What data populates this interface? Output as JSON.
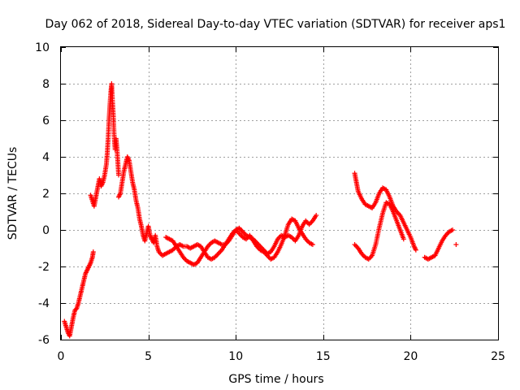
{
  "chart_data": {
    "type": "scatter",
    "title": "Day 062 of 2018, Sidereal Day-to-day VTEC variation (SDTVAR) for receiver aps1",
    "xlabel": "GPS time / hours",
    "ylabel": "SDTVAR / TECUs",
    "xlim": [
      0,
      25
    ],
    "ylim": [
      -6,
      10
    ],
    "xticks": [
      0,
      5,
      10,
      15,
      20,
      25
    ],
    "yticks": [
      -6,
      -4,
      -2,
      0,
      2,
      4,
      6,
      8,
      10
    ],
    "grid": true,
    "marker": "+",
    "series": [
      {
        "name": "aps1",
        "color": "#ff0000",
        "segments": [
          [
            [
              0.2,
              -5.0
            ],
            [
              0.3,
              -5.3
            ],
            [
              0.4,
              -5.6
            ],
            [
              0.5,
              -5.8
            ],
            [
              0.6,
              -5.3
            ],
            [
              0.7,
              -4.8
            ],
            [
              0.8,
              -4.4
            ],
            [
              0.9,
              -4.3
            ],
            [
              1.0,
              -4.0
            ],
            [
              1.1,
              -3.6
            ],
            [
              1.2,
              -3.2
            ],
            [
              1.3,
              -2.8
            ],
            [
              1.4,
              -2.4
            ],
            [
              1.5,
              -2.2
            ],
            [
              1.6,
              -2.0
            ],
            [
              1.7,
              -1.8
            ],
            [
              1.8,
              -1.5
            ],
            [
              1.85,
              -1.2
            ]
          ],
          [
            [
              1.7,
              1.9
            ],
            [
              1.8,
              1.6
            ],
            [
              1.9,
              1.3
            ],
            [
              2.0,
              1.8
            ],
            [
              2.1,
              2.3
            ],
            [
              2.2,
              2.8
            ],
            [
              2.3,
              2.4
            ],
            [
              2.4,
              2.6
            ],
            [
              2.5,
              3.0
            ],
            [
              2.6,
              3.6
            ],
            [
              2.65,
              4.2
            ],
            [
              2.7,
              5.0
            ],
            [
              2.75,
              6.0
            ],
            [
              2.8,
              6.8
            ],
            [
              2.85,
              7.5
            ],
            [
              2.9,
              8.0
            ],
            [
              2.95,
              7.0
            ],
            [
              3.0,
              6.2
            ],
            [
              3.05,
              5.0
            ],
            [
              3.1,
              4.4
            ],
            [
              3.15,
              5.0
            ],
            [
              3.2,
              4.5
            ],
            [
              3.25,
              3.8
            ],
            [
              3.3,
              3.0
            ]
          ],
          [
            [
              3.3,
              1.8
            ],
            [
              3.4,
              2.0
            ],
            [
              3.5,
              2.6
            ],
            [
              3.6,
              3.2
            ],
            [
              3.7,
              3.6
            ],
            [
              3.8,
              4.0
            ],
            [
              3.9,
              3.8
            ],
            [
              4.0,
              3.2
            ],
            [
              4.1,
              2.6
            ],
            [
              4.2,
              2.2
            ],
            [
              4.3,
              1.6
            ],
            [
              4.4,
              1.2
            ],
            [
              4.5,
              0.6
            ],
            [
              4.6,
              0.2
            ],
            [
              4.7,
              -0.3
            ],
            [
              4.8,
              -0.6
            ],
            [
              4.9,
              -0.2
            ],
            [
              5.0,
              0.2
            ],
            [
              5.1,
              -0.3
            ],
            [
              5.2,
              -0.5
            ],
            [
              5.3,
              -0.7
            ],
            [
              5.4,
              -0.3
            ],
            [
              5.5,
              -0.9
            ],
            [
              5.6,
              -1.2
            ],
            [
              5.8,
              -1.4
            ],
            [
              6.0,
              -1.3
            ],
            [
              6.2,
              -1.2
            ],
            [
              6.4,
              -1.1
            ],
            [
              6.6,
              -0.9
            ],
            [
              6.8,
              -0.8
            ],
            [
              7.0,
              -0.9
            ],
            [
              7.2,
              -0.9
            ],
            [
              7.4,
              -1.0
            ],
            [
              7.6,
              -0.9
            ],
            [
              7.8,
              -0.8
            ],
            [
              8.0,
              -0.9
            ],
            [
              8.2,
              -1.2
            ],
            [
              8.4,
              -1.5
            ],
            [
              8.6,
              -1.6
            ],
            [
              8.8,
              -1.5
            ],
            [
              9.0,
              -1.3
            ],
            [
              9.2,
              -1.1
            ],
            [
              9.4,
              -0.8
            ],
            [
              9.6,
              -0.5
            ],
            [
              9.8,
              -0.2
            ],
            [
              10.0,
              0.0
            ],
            [
              10.2,
              0.1
            ],
            [
              10.4,
              -0.1
            ],
            [
              10.6,
              -0.3
            ],
            [
              10.8,
              -0.4
            ],
            [
              11.0,
              -0.5
            ],
            [
              11.2,
              -0.7
            ],
            [
              11.4,
              -0.9
            ],
            [
              11.6,
              -1.1
            ],
            [
              11.8,
              -1.3
            ],
            [
              12.0,
              -1.2
            ],
            [
              12.2,
              -0.9
            ],
            [
              12.4,
              -0.5
            ],
            [
              12.6,
              -0.3
            ],
            [
              12.8,
              -0.4
            ],
            [
              13.0,
              -0.3
            ],
            [
              13.2,
              -0.4
            ],
            [
              13.4,
              -0.6
            ],
            [
              13.6,
              -0.3
            ],
            [
              13.8,
              0.2
            ],
            [
              14.0,
              0.5
            ],
            [
              14.2,
              0.3
            ],
            [
              14.4,
              0.5
            ],
            [
              14.6,
              0.8
            ]
          ],
          [
            [
              6.0,
              -0.4
            ],
            [
              6.2,
              -0.5
            ],
            [
              6.4,
              -0.6
            ],
            [
              6.6,
              -0.9
            ],
            [
              6.8,
              -1.2
            ],
            [
              7.0,
              -1.5
            ],
            [
              7.2,
              -1.7
            ],
            [
              7.4,
              -1.8
            ],
            [
              7.6,
              -1.9
            ],
            [
              7.8,
              -1.8
            ],
            [
              8.0,
              -1.5
            ],
            [
              8.2,
              -1.2
            ],
            [
              8.4,
              -0.9
            ],
            [
              8.6,
              -0.7
            ],
            [
              8.8,
              -0.6
            ],
            [
              9.0,
              -0.7
            ],
            [
              9.2,
              -0.8
            ],
            [
              9.4,
              -0.8
            ],
            [
              9.6,
              -0.6
            ],
            [
              9.8,
              -0.3
            ],
            [
              10.0,
              0.0
            ],
            [
              10.2,
              -0.2
            ],
            [
              10.4,
              -0.4
            ],
            [
              10.6,
              -0.5
            ],
            [
              10.8,
              -0.3
            ],
            [
              11.0,
              -0.6
            ],
            [
              11.2,
              -0.9
            ],
            [
              11.4,
              -1.1
            ],
            [
              11.6,
              -1.2
            ],
            [
              11.8,
              -1.4
            ],
            [
              12.0,
              -1.6
            ],
            [
              12.2,
              -1.5
            ],
            [
              12.4,
              -1.2
            ],
            [
              12.6,
              -0.8
            ],
            [
              12.8,
              -0.3
            ],
            [
              13.0,
              0.3
            ],
            [
              13.2,
              0.6
            ],
            [
              13.4,
              0.5
            ],
            [
              13.6,
              0.1
            ],
            [
              13.8,
              -0.2
            ],
            [
              14.0,
              -0.5
            ],
            [
              14.2,
              -0.7
            ],
            [
              14.4,
              -0.8
            ]
          ],
          [
            [
              16.8,
              3.1
            ],
            [
              16.9,
              2.6
            ],
            [
              17.0,
              2.1
            ],
            [
              17.2,
              1.7
            ],
            [
              17.4,
              1.4
            ],
            [
              17.6,
              1.3
            ],
            [
              17.8,
              1.2
            ],
            [
              18.0,
              1.5
            ],
            [
              18.2,
              2.0
            ],
            [
              18.4,
              2.3
            ],
            [
              18.6,
              2.2
            ],
            [
              18.8,
              1.8
            ],
            [
              19.0,
              1.3
            ],
            [
              19.2,
              1.0
            ],
            [
              19.4,
              0.8
            ],
            [
              19.6,
              0.4
            ],
            [
              19.8,
              0.0
            ],
            [
              20.0,
              -0.4
            ],
            [
              20.2,
              -0.9
            ],
            [
              20.3,
              -1.1
            ]
          ],
          [
            [
              16.8,
              -0.8
            ],
            [
              17.0,
              -1.0
            ],
            [
              17.2,
              -1.3
            ],
            [
              17.4,
              -1.5
            ],
            [
              17.6,
              -1.6
            ],
            [
              17.8,
              -1.4
            ],
            [
              18.0,
              -0.8
            ],
            [
              18.2,
              0.1
            ],
            [
              18.4,
              0.9
            ],
            [
              18.6,
              1.5
            ],
            [
              18.8,
              1.4
            ],
            [
              19.0,
              1.0
            ],
            [
              19.2,
              0.5
            ],
            [
              19.4,
              0.0
            ],
            [
              19.6,
              -0.5
            ]
          ],
          [
            [
              20.8,
              -1.5
            ],
            [
              21.0,
              -1.6
            ],
            [
              21.2,
              -1.5
            ],
            [
              21.4,
              -1.4
            ],
            [
              21.6,
              -1.0
            ],
            [
              21.8,
              -0.6
            ],
            [
              22.0,
              -0.3
            ],
            [
              22.2,
              -0.1
            ],
            [
              22.4,
              0.0
            ]
          ],
          [
            [
              22.6,
              -0.8
            ]
          ]
        ]
      }
    ]
  }
}
